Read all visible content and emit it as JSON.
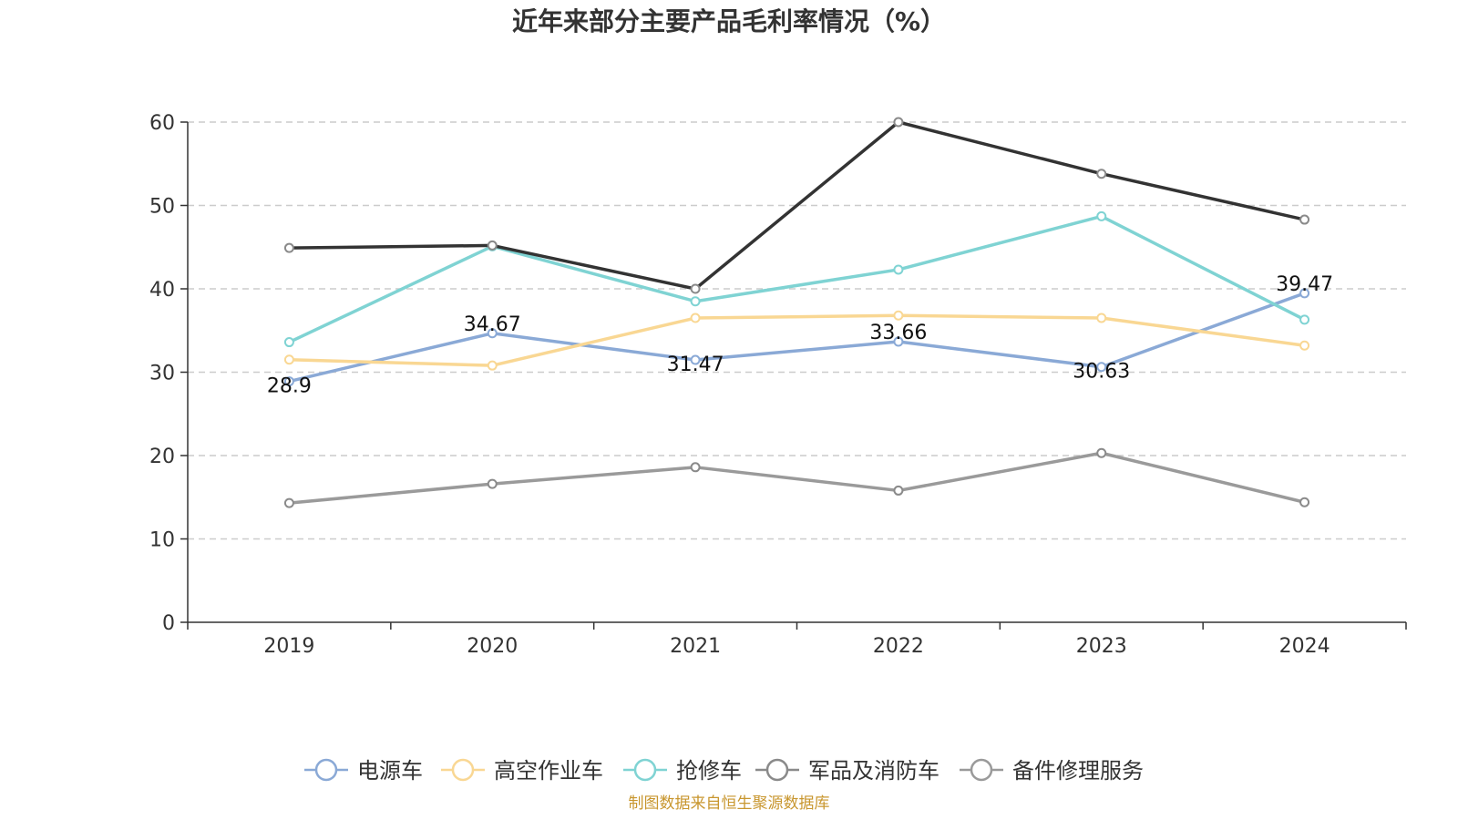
{
  "chart_data": {
    "type": "line",
    "title": "近年来部分主要产品毛利率情况（%）",
    "categories": [
      "2019",
      "2020",
      "2021",
      "2022",
      "2023",
      "2024"
    ],
    "ylim": [
      0,
      60
    ],
    "yticks": [
      "0",
      "10",
      "20",
      "30",
      "40",
      "50",
      "60"
    ],
    "grid": true,
    "legend_position": "bottom",
    "series": [
      {
        "name": "电源车",
        "color": "#8aa9d6",
        "values": [
          28.9,
          34.67,
          31.47,
          33.66,
          30.63,
          39.47
        ],
        "data_labels": [
          "28.9",
          "34.67",
          "31.47",
          "33.66",
          "30.63",
          "39.47"
        ]
      },
      {
        "name": "高空作业车",
        "color": "#f9d793",
        "values": [
          31.5,
          30.8,
          36.5,
          36.8,
          36.5,
          33.2
        ]
      },
      {
        "name": "抢修车",
        "color": "#7fd3d3",
        "values": [
          33.6,
          45.1,
          38.5,
          42.3,
          48.7,
          36.3
        ]
      },
      {
        "name": "军品及消防车",
        "color": "#333333",
        "values": [
          44.9,
          45.2,
          40.0,
          60.0,
          53.8,
          48.3
        ]
      },
      {
        "name": "备件修理服务",
        "color": "#9a9a9a",
        "values": [
          14.3,
          16.6,
          18.6,
          15.8,
          20.3,
          14.4
        ]
      }
    ],
    "source": "制图数据来自恒生聚源数据库"
  }
}
